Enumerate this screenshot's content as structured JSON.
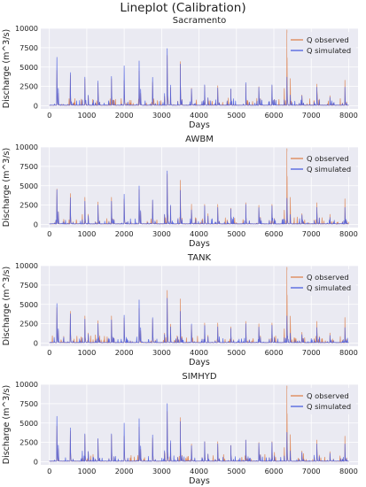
{
  "figure": {
    "title": "Lineplot (Calibration)"
  },
  "colors": {
    "observed": "#dd8452",
    "simulated": "#4c5fe0",
    "plot_bg": "#eaeaf2",
    "grid": "#ffffff"
  },
  "chart_data": [
    {
      "type": "line",
      "title": "Sacramento",
      "xlabel": "Days",
      "ylabel": "Discharge (m^3/s)",
      "xlim": [
        -230,
        8250
      ],
      "ylim": [
        -400,
        10000
      ],
      "xticks": [
        0,
        1000,
        2000,
        3000,
        4000,
        5000,
        6000,
        7000,
        8000
      ],
      "yticks": [
        0,
        2500,
        5000,
        7500,
        10000
      ],
      "grid": true,
      "legend": "top-right",
      "series": [
        {
          "name": "Q observed",
          "peaks": [
            [
              200,
              4500
            ],
            [
              560,
              3900
            ],
            [
              950,
              3500
            ],
            [
              1300,
              2900
            ],
            [
              1660,
              3500
            ],
            [
              2000,
              3200
            ],
            [
              2400,
              4400
            ],
            [
              2760,
              3000
            ],
            [
              3150,
              6500
            ],
            [
              3500,
              5700
            ],
            [
              3800,
              2200
            ],
            [
              4150,
              2600
            ],
            [
              4500,
              2600
            ],
            [
              4850,
              2100
            ],
            [
              5250,
              2800
            ],
            [
              5600,
              2400
            ],
            [
              5950,
              2600
            ],
            [
              6350,
              9800
            ],
            [
              6750,
              1400
            ],
            [
              7150,
              2800
            ],
            [
              7500,
              1300
            ],
            [
              7900,
              3300
            ]
          ]
        },
        {
          "name": "Q simulated",
          "peaks": [
            [
              200,
              6200
            ],
            [
              560,
              4200
            ],
            [
              950,
              3700
            ],
            [
              1300,
              3200
            ],
            [
              1660,
              3800
            ],
            [
              2000,
              5100
            ],
            [
              2400,
              5700
            ],
            [
              2760,
              3600
            ],
            [
              3150,
              7400
            ],
            [
              3500,
              5400
            ],
            [
              3800,
              2100
            ],
            [
              4150,
              2700
            ],
            [
              4500,
              2300
            ],
            [
              4850,
              2200
            ],
            [
              5250,
              3000
            ],
            [
              5600,
              2300
            ],
            [
              5950,
              2700
            ],
            [
              6350,
              3700
            ],
            [
              6750,
              1300
            ],
            [
              7150,
              2400
            ],
            [
              7500,
              1100
            ],
            [
              7900,
              2400
            ]
          ]
        }
      ]
    },
    {
      "type": "line",
      "title": "AWBM",
      "xlabel": "Days",
      "ylabel": "Discharge (m^3/s)",
      "xlim": [
        -230,
        8250
      ],
      "ylim": [
        -400,
        10000
      ],
      "xticks": [
        0,
        1000,
        2000,
        3000,
        4000,
        5000,
        6000,
        7000,
        8000
      ],
      "yticks": [
        0,
        2500,
        5000,
        7500,
        10000
      ],
      "grid": true,
      "legend": "top-right",
      "series": [
        {
          "name": "Q observed",
          "peaks": [
            [
              200,
              4500
            ],
            [
              560,
              3900
            ],
            [
              950,
              3500
            ],
            [
              1300,
              2900
            ],
            [
              1660,
              3500
            ],
            [
              2000,
              3200
            ],
            [
              2400,
              4400
            ],
            [
              2760,
              3000
            ],
            [
              3150,
              6500
            ],
            [
              3500,
              5700
            ],
            [
              3800,
              2200
            ],
            [
              4150,
              2600
            ],
            [
              4500,
              2600
            ],
            [
              4850,
              2100
            ],
            [
              5250,
              2800
            ],
            [
              5600,
              2400
            ],
            [
              5950,
              2600
            ],
            [
              6350,
              9800
            ],
            [
              6750,
              1400
            ],
            [
              7150,
              2800
            ],
            [
              7500,
              1300
            ],
            [
              7900,
              3300
            ]
          ]
        },
        {
          "name": "Q simulated",
          "peaks": [
            [
              200,
              4400
            ],
            [
              560,
              3400
            ],
            [
              950,
              3000
            ],
            [
              1300,
              2500
            ],
            [
              1660,
              3000
            ],
            [
              2000,
              3800
            ],
            [
              2400,
              4900
            ],
            [
              2760,
              3100
            ],
            [
              3150,
              6900
            ],
            [
              3500,
              4400
            ],
            [
              3800,
              1800
            ],
            [
              4150,
              2400
            ],
            [
              4500,
              2200
            ],
            [
              4850,
              2000
            ],
            [
              5250,
              2600
            ],
            [
              5600,
              2100
            ],
            [
              5950,
              2400
            ],
            [
              6350,
              3400
            ],
            [
              6750,
              1100
            ],
            [
              7150,
              2200
            ],
            [
              7500,
              900
            ],
            [
              7900,
              2200
            ]
          ]
        }
      ]
    },
    {
      "type": "line",
      "title": "TANK",
      "xlabel": "Days",
      "ylabel": "Discharge (m^3/s)",
      "xlim": [
        -230,
        8250
      ],
      "ylim": [
        -400,
        10000
      ],
      "xticks": [
        0,
        1000,
        2000,
        3000,
        4000,
        5000,
        6000,
        7000,
        8000
      ],
      "yticks": [
        0,
        2500,
        5000,
        7500,
        10000
      ],
      "grid": true,
      "legend": "top-right",
      "series": [
        {
          "name": "Q observed",
          "peaks": [
            [
              200,
              4500
            ],
            [
              560,
              3900
            ],
            [
              950,
              3500
            ],
            [
              1300,
              2900
            ],
            [
              1660,
              3500
            ],
            [
              2000,
              3200
            ],
            [
              2400,
              4400
            ],
            [
              2760,
              3000
            ],
            [
              3150,
              6800
            ],
            [
              3500,
              5700
            ],
            [
              3800,
              2200
            ],
            [
              4150,
              2600
            ],
            [
              4500,
              2600
            ],
            [
              4850,
              2100
            ],
            [
              5250,
              2800
            ],
            [
              5600,
              2400
            ],
            [
              5950,
              2600
            ],
            [
              6350,
              9800
            ],
            [
              6750,
              1400
            ],
            [
              7150,
              2800
            ],
            [
              7500,
              1300
            ],
            [
              7900,
              3300
            ]
          ]
        },
        {
          "name": "Q simulated",
          "peaks": [
            [
              200,
              5000
            ],
            [
              560,
              3700
            ],
            [
              950,
              3100
            ],
            [
              1300,
              2500
            ],
            [
              1660,
              3000
            ],
            [
              2000,
              3500
            ],
            [
              2400,
              5500
            ],
            [
              2760,
              3200
            ],
            [
              3150,
              5800
            ],
            [
              3500,
              4100
            ],
            [
              3800,
              1900
            ],
            [
              4150,
              2200
            ],
            [
              4500,
              2100
            ],
            [
              4850,
              1900
            ],
            [
              5250,
              2500
            ],
            [
              5600,
              2000
            ],
            [
              5950,
              2300
            ],
            [
              6350,
              3500
            ],
            [
              6750,
              1100
            ],
            [
              7150,
              2000
            ],
            [
              7500,
              1000
            ],
            [
              7900,
              2000
            ]
          ]
        }
      ]
    },
    {
      "type": "line",
      "title": "SIMHYD",
      "xlabel": "Days",
      "ylabel": "Discharge (m^3/s)",
      "xlim": [
        -230,
        8250
      ],
      "ylim": [
        -400,
        10000
      ],
      "xticks": [
        0,
        1000,
        2000,
        3000,
        4000,
        5000,
        6000,
        7000,
        8000
      ],
      "yticks": [
        0,
        2500,
        5000,
        7500,
        10000
      ],
      "grid": true,
      "legend": "top-right",
      "series": [
        {
          "name": "Q observed",
          "peaks": [
            [
              200,
              4500
            ],
            [
              560,
              3900
            ],
            [
              950,
              3500
            ],
            [
              1300,
              2900
            ],
            [
              1660,
              3500
            ],
            [
              2000,
              3200
            ],
            [
              2400,
              4400
            ],
            [
              2760,
              3000
            ],
            [
              3150,
              6500
            ],
            [
              3500,
              5700
            ],
            [
              3800,
              2200
            ],
            [
              4150,
              2600
            ],
            [
              4500,
              2600
            ],
            [
              4850,
              2100
            ],
            [
              5250,
              2800
            ],
            [
              5600,
              2400
            ],
            [
              5950,
              2600
            ],
            [
              6350,
              9800
            ],
            [
              6750,
              1400
            ],
            [
              7150,
              2800
            ],
            [
              7500,
              1300
            ],
            [
              7900,
              3300
            ]
          ]
        },
        {
          "name": "Q simulated",
          "peaks": [
            [
              200,
              5800
            ],
            [
              560,
              4300
            ],
            [
              950,
              3600
            ],
            [
              1300,
              3000
            ],
            [
              1660,
              3600
            ],
            [
              2000,
              4900
            ],
            [
              2400,
              5500
            ],
            [
              2760,
              3400
            ],
            [
              3150,
              7500
            ],
            [
              3500,
              5200
            ],
            [
              3800,
              2000
            ],
            [
              4150,
              2600
            ],
            [
              4500,
              2300
            ],
            [
              4850,
              2100
            ],
            [
              5250,
              2800
            ],
            [
              5600,
              2300
            ],
            [
              5950,
              2500
            ],
            [
              6350,
              3800
            ],
            [
              6750,
              1200
            ],
            [
              7150,
              2300
            ],
            [
              7500,
              1100
            ],
            [
              7900,
              2300
            ]
          ]
        }
      ]
    }
  ]
}
